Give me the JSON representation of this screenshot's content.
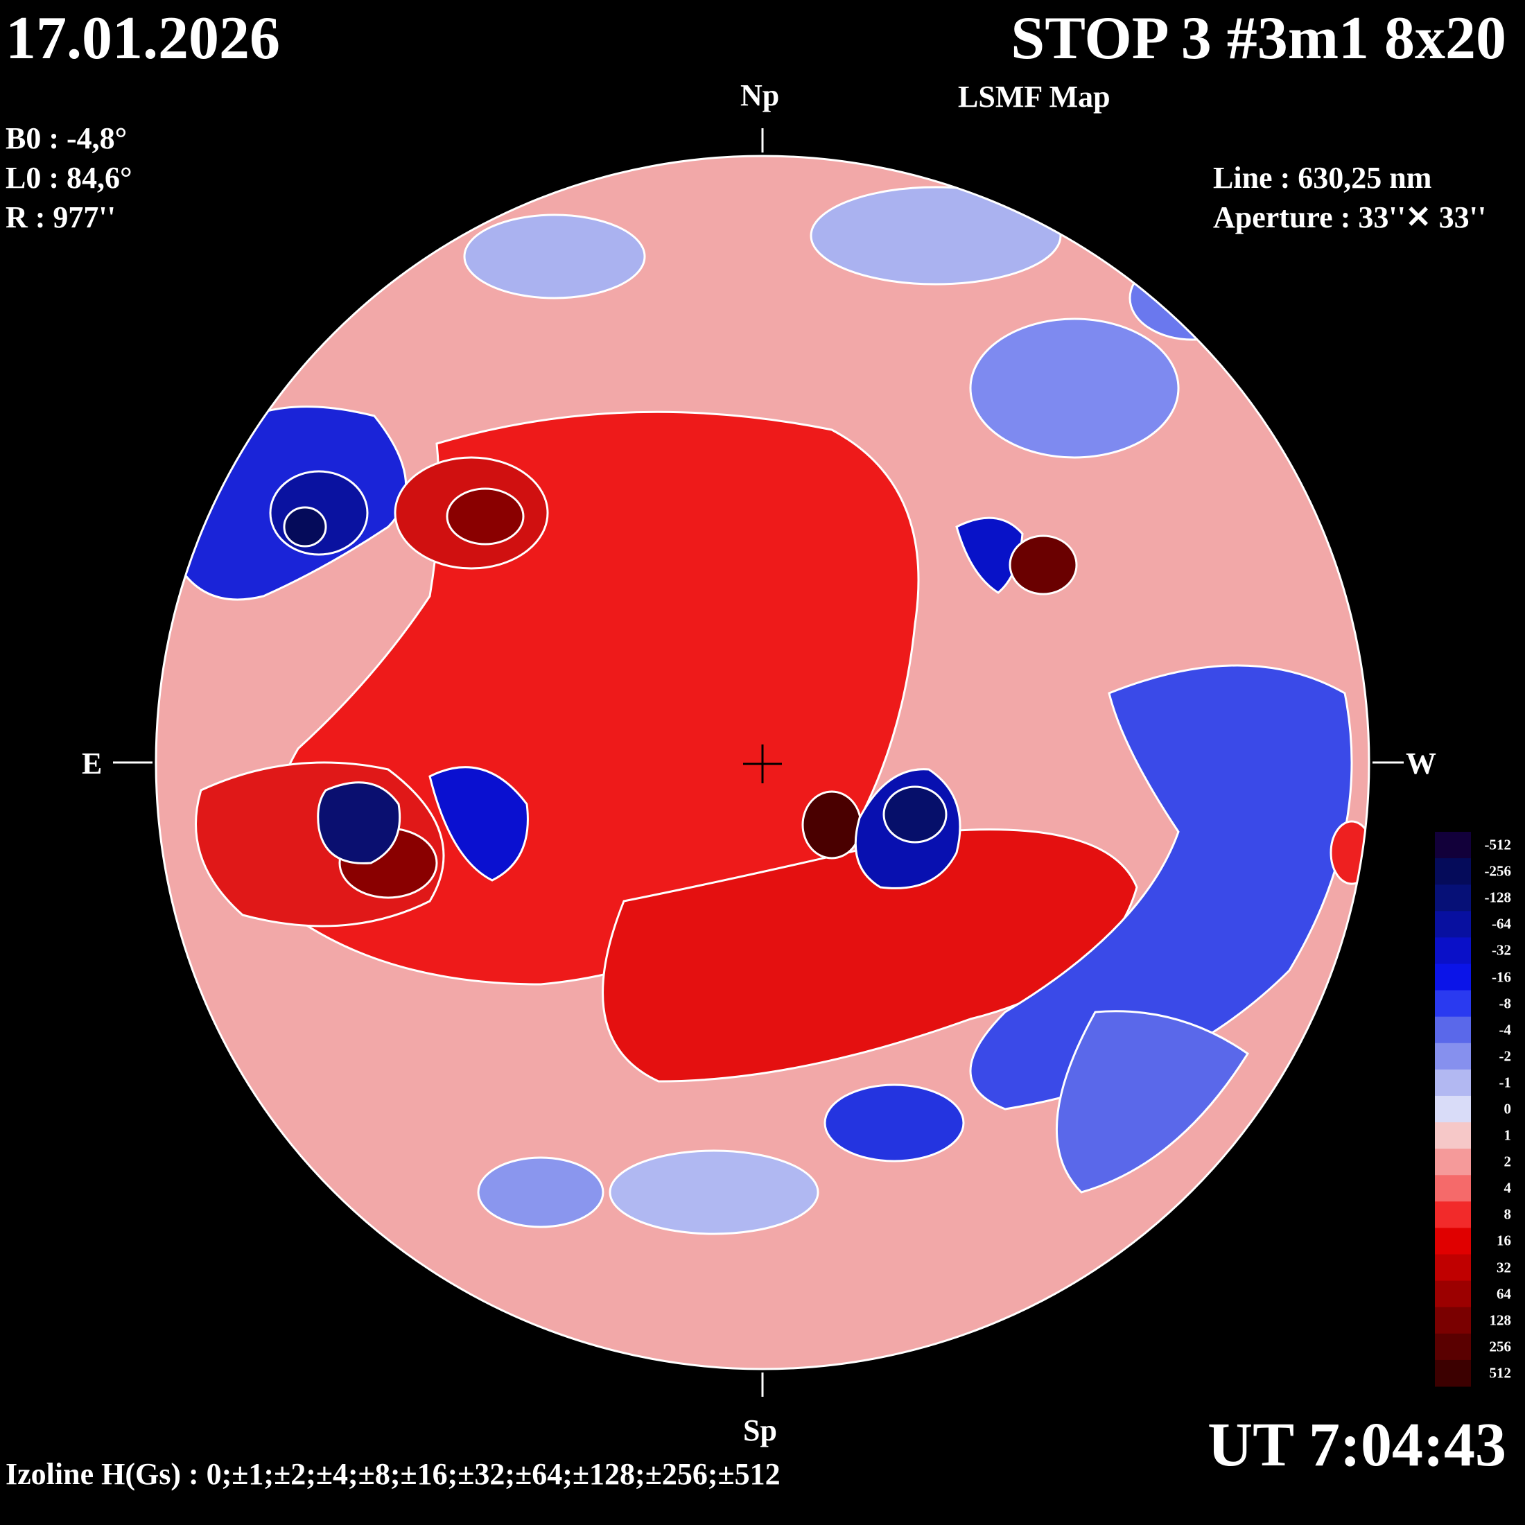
{
  "header": {
    "date": "17.01.2026",
    "title": "STOP 3 #3m1 8x20",
    "subtitle": "LSMF  Map"
  },
  "parameters": [
    {
      "label": "B0 : -4,8°"
    },
    {
      "label": "L0 : 84,6°"
    },
    {
      "label": "R  : 977''"
    }
  ],
  "instrument": {
    "line": "Line :  630,25 nm",
    "aperture": "Aperture : 33''✕ 33''"
  },
  "directions": {
    "north": "Np",
    "south": "Sp",
    "east": "E",
    "west": "W"
  },
  "footer": {
    "izoline": "Izoline H(Gs) : 0;±1;±2;±4;±8;±16;±32;±64;±128;±256;±512",
    "ut": "UT 7:04:43"
  },
  "legend": {
    "levels": [
      {
        "label": "-512",
        "color": "#12003a"
      },
      {
        "label": "-256",
        "color": "#050b5a"
      },
      {
        "label": "-128",
        "color": "#061077"
      },
      {
        "label": "-64",
        "color": "#0810a0"
      },
      {
        "label": "-32",
        "color": "#0a10c8"
      },
      {
        "label": "-16",
        "color": "#0b14e8"
      },
      {
        "label": "-8",
        "color": "#2a3af0"
      },
      {
        "label": "-4",
        "color": "#5a68ea"
      },
      {
        "label": "-2",
        "color": "#8690ee"
      },
      {
        "label": "-1",
        "color": "#b2b8f2"
      },
      {
        "label": "0",
        "color": "#d9dcf8"
      },
      {
        "label": "1",
        "color": "#f6c8c8"
      },
      {
        "label": "2",
        "color": "#f59a9a"
      },
      {
        "label": "4",
        "color": "#f56a6a"
      },
      {
        "label": "8",
        "color": "#f22a2a"
      },
      {
        "label": "16",
        "color": "#e00000"
      },
      {
        "label": "32",
        "color": "#c00000"
      },
      {
        "label": "64",
        "color": "#9c0000"
      },
      {
        "label": "128",
        "color": "#7a0000"
      },
      {
        "label": "256",
        "color": "#5a0000"
      },
      {
        "label": "512",
        "color": "#3c0000"
      }
    ]
  },
  "map_regions": {
    "background": "#f2a8a8",
    "regions": [
      {
        "name": "north-weak-blue-1",
        "color": "#aab2f0"
      },
      {
        "name": "north-weak-blue-2",
        "color": "#aab2f0"
      },
      {
        "name": "north-blue-3",
        "color": "#7e8af0"
      },
      {
        "name": "ne-blue-patch",
        "color": "#6a78ee"
      },
      {
        "name": "east-blue-patch",
        "color": "#1a24d8"
      },
      {
        "name": "east-blue-core",
        "color": "#0a12a0"
      },
      {
        "name": "east-blue-deep",
        "color": "#050b5a"
      },
      {
        "name": "central-red",
        "color": "#ee1a1a"
      },
      {
        "name": "central-red-2",
        "color": "#e41010"
      },
      {
        "name": "red-patch-ne",
        "color": "#d01010"
      },
      {
        "name": "red-core-ne",
        "color": "#8a0000"
      },
      {
        "name": "sunspot-red-center",
        "color": "#4a0000"
      },
      {
        "name": "sunspot-blue-center",
        "color": "#0810b0"
      },
      {
        "name": "sunspot-blue-deep",
        "color": "#060f6a"
      },
      {
        "name": "sw-blue-band",
        "color": "#3a4ae8"
      },
      {
        "name": "sw-blue-band-2",
        "color": "#5a68ea"
      },
      {
        "name": "south-blue",
        "color": "#2434e0"
      },
      {
        "name": "west-red-spot",
        "color": "#ee2020"
      },
      {
        "name": "east-red-region",
        "color": "#e01818"
      },
      {
        "name": "east-red-deep",
        "color": "#8a0000"
      },
      {
        "name": "east-blue-spot",
        "color": "#0a0f70"
      },
      {
        "name": "mid-blue-patch",
        "color": "#0a10d0"
      },
      {
        "name": "ne-blue-spot",
        "color": "#0812c8"
      },
      {
        "name": "ne-red-spot",
        "color": "#6a0000"
      },
      {
        "name": "south-weak",
        "color": "#b0b8f2"
      },
      {
        "name": "south-weak-2",
        "color": "#8a96ee"
      }
    ]
  }
}
